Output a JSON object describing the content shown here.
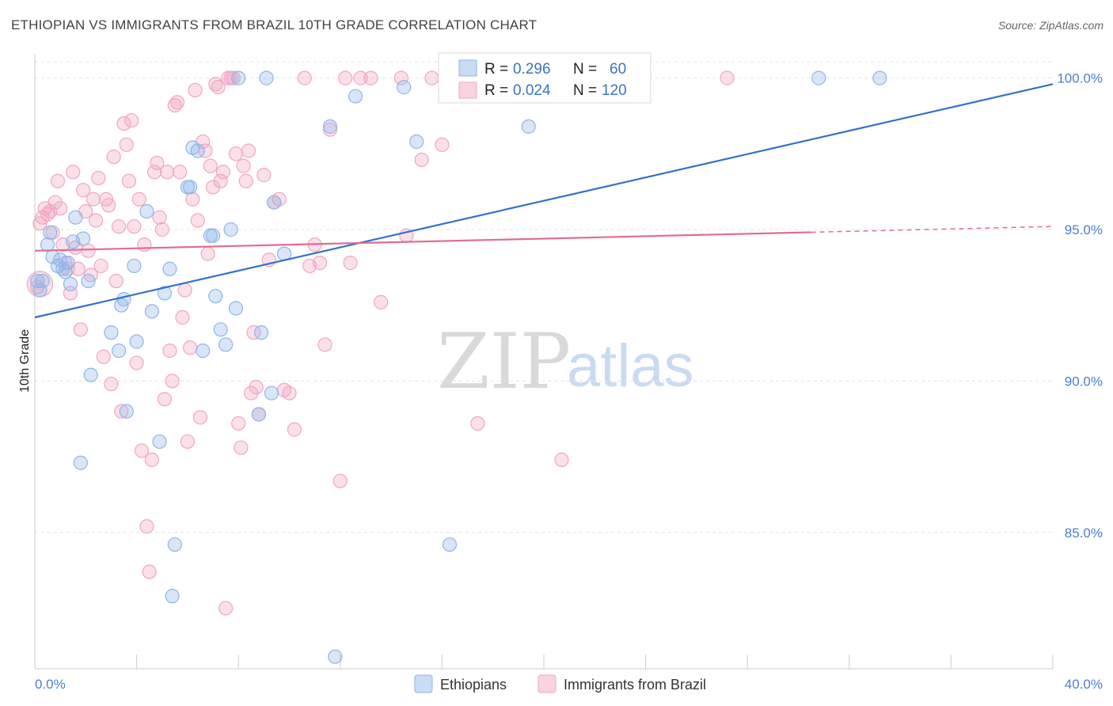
{
  "title": "ETHIOPIAN VS IMMIGRANTS FROM BRAZIL 10TH GRADE CORRELATION CHART",
  "source": "Source: ZipAtlas.com",
  "watermark": {
    "zip": "ZIP",
    "atlas": "atlas"
  },
  "stats_box": {
    "rows": [
      {
        "r_label": "R =",
        "r_value": "0.296",
        "n_label": "N =",
        "n_value": "60"
      },
      {
        "r_label": "R =",
        "r_value": "0.024",
        "n_label": "N =",
        "n_value": "120"
      }
    ]
  },
  "chart_data": {
    "type": "scatter",
    "title": "ETHIOPIAN VS IMMIGRANTS FROM BRAZIL 10TH GRADE CORRELATION CHART",
    "xlabel": "",
    "ylabel": "10th Grade",
    "xlim": [
      0,
      40
    ],
    "ylim": [
      80.5,
      100.8
    ],
    "x_tick_labels": [
      {
        "value": 0,
        "label": "0.0%"
      },
      {
        "value": 40,
        "label": "40.0%"
      }
    ],
    "y_tick_labels": [
      {
        "value": 85,
        "label": "85.0%"
      },
      {
        "value": 90,
        "label": "90.0%"
      },
      {
        "value": 95,
        "label": "95.0%"
      },
      {
        "value": 100,
        "label": "100.0%"
      }
    ],
    "grid": true,
    "legend_position": "bottom",
    "colors": {
      "ethiopians": "#8fb6ea",
      "ethiopians_line": "#3372c9",
      "brazil": "#f2a6c0",
      "brazil_line": "#e46a94"
    },
    "series": [
      {
        "name": "Ethiopians",
        "trend": {
          "x": [
            0,
            40
          ],
          "y": [
            92.1,
            99.8
          ]
        },
        "points": [
          [
            0.1,
            93.3
          ],
          [
            0.2,
            93.0
          ],
          [
            0.3,
            93.3
          ],
          [
            0.5,
            94.5
          ],
          [
            0.6,
            94.9
          ],
          [
            0.7,
            94.1
          ],
          [
            0.9,
            93.8
          ],
          [
            1.0,
            94.0
          ],
          [
            1.1,
            93.7
          ],
          [
            1.2,
            93.6
          ],
          [
            1.3,
            93.9
          ],
          [
            1.4,
            93.2
          ],
          [
            1.5,
            94.6
          ],
          [
            1.6,
            95.4
          ],
          [
            1.8,
            87.3
          ],
          [
            1.9,
            94.7
          ],
          [
            2.1,
            93.3
          ],
          [
            2.2,
            90.2
          ],
          [
            3.0,
            91.6
          ],
          [
            3.3,
            91.0
          ],
          [
            3.4,
            92.5
          ],
          [
            3.5,
            92.7
          ],
          [
            3.6,
            89.0
          ],
          [
            3.9,
            93.8
          ],
          [
            4.0,
            91.3
          ],
          [
            4.4,
            95.6
          ],
          [
            4.6,
            92.3
          ],
          [
            4.9,
            88.0
          ],
          [
            5.1,
            92.9
          ],
          [
            5.3,
            93.7
          ],
          [
            5.4,
            82.9
          ],
          [
            5.5,
            84.6
          ],
          [
            6.0,
            96.4
          ],
          [
            6.1,
            96.4
          ],
          [
            6.2,
            97.7
          ],
          [
            6.4,
            97.6
          ],
          [
            6.6,
            91.0
          ],
          [
            6.9,
            94.8
          ],
          [
            7.0,
            94.8
          ],
          [
            7.1,
            92.8
          ],
          [
            7.3,
            91.7
          ],
          [
            7.5,
            91.2
          ],
          [
            7.7,
            95.0
          ],
          [
            7.9,
            92.4
          ],
          [
            8.8,
            88.9
          ],
          [
            8.9,
            91.6
          ],
          [
            8.0,
            100.0
          ],
          [
            9.1,
            100.0
          ],
          [
            9.3,
            89.6
          ],
          [
            9.4,
            95.9
          ],
          [
            9.8,
            94.2
          ],
          [
            11.6,
            98.4
          ],
          [
            11.8,
            80.9
          ],
          [
            12.6,
            99.4
          ],
          [
            14.5,
            99.7
          ],
          [
            15.0,
            97.9
          ],
          [
            16.3,
            84.6
          ],
          [
            19.4,
            98.4
          ],
          [
            30.8,
            100.0
          ],
          [
            33.2,
            100.0
          ]
        ]
      },
      {
        "name": "Immigrants from Brazil",
        "trend": {
          "x": [
            0,
            40
          ],
          "y": [
            94.3,
            95.1
          ],
          "solid_to_x": 30.5
        },
        "points": [
          [
            0.1,
            93.1
          ],
          [
            0.2,
            95.2
          ],
          [
            0.3,
            95.4
          ],
          [
            0.4,
            95.7
          ],
          [
            0.5,
            95.5
          ],
          [
            0.6,
            95.6
          ],
          [
            0.7,
            94.9
          ],
          [
            0.8,
            95.9
          ],
          [
            0.9,
            96.6
          ],
          [
            1.0,
            95.7
          ],
          [
            1.1,
            94.5
          ],
          [
            1.2,
            93.9
          ],
          [
            1.3,
            93.7
          ],
          [
            1.4,
            92.9
          ],
          [
            1.5,
            96.9
          ],
          [
            1.6,
            94.4
          ],
          [
            1.7,
            93.7
          ],
          [
            1.8,
            91.7
          ],
          [
            1.9,
            96.3
          ],
          [
            2.0,
            95.6
          ],
          [
            2.1,
            94.3
          ],
          [
            2.2,
            93.5
          ],
          [
            2.3,
            96.0
          ],
          [
            2.4,
            95.3
          ],
          [
            2.5,
            96.7
          ],
          [
            2.6,
            93.8
          ],
          [
            2.7,
            90.8
          ],
          [
            2.8,
            96.0
          ],
          [
            2.9,
            95.8
          ],
          [
            3.0,
            89.9
          ],
          [
            3.1,
            97.4
          ],
          [
            3.2,
            93.3
          ],
          [
            3.3,
            95.1
          ],
          [
            3.4,
            89.0
          ],
          [
            3.5,
            98.5
          ],
          [
            3.6,
            97.8
          ],
          [
            3.7,
            96.6
          ],
          [
            3.8,
            98.6
          ],
          [
            3.9,
            95.1
          ],
          [
            4.0,
            90.6
          ],
          [
            4.1,
            96.0
          ],
          [
            4.2,
            87.7
          ],
          [
            4.3,
            94.5
          ],
          [
            4.4,
            85.2
          ],
          [
            4.5,
            83.7
          ],
          [
            4.6,
            87.4
          ],
          [
            4.7,
            96.9
          ],
          [
            4.8,
            97.2
          ],
          [
            4.9,
            95.4
          ],
          [
            5.0,
            95.0
          ],
          [
            5.1,
            89.4
          ],
          [
            5.2,
            96.9
          ],
          [
            5.3,
            91.0
          ],
          [
            5.4,
            90.0
          ],
          [
            5.5,
            99.1
          ],
          [
            5.6,
            99.2
          ],
          [
            5.7,
            96.9
          ],
          [
            5.8,
            92.1
          ],
          [
            5.9,
            93.0
          ],
          [
            6.0,
            88.0
          ],
          [
            6.1,
            91.1
          ],
          [
            6.2,
            96.0
          ],
          [
            6.3,
            99.6
          ],
          [
            6.4,
            95.3
          ],
          [
            6.5,
            88.8
          ],
          [
            6.6,
            97.9
          ],
          [
            6.7,
            97.6
          ],
          [
            6.8,
            94.2
          ],
          [
            6.9,
            97.1
          ],
          [
            7.0,
            96.4
          ],
          [
            7.1,
            99.8
          ],
          [
            7.2,
            99.7
          ],
          [
            7.3,
            96.6
          ],
          [
            7.4,
            96.9
          ],
          [
            7.5,
            82.5
          ],
          [
            7.6,
            100.0
          ],
          [
            7.7,
            100.0
          ],
          [
            7.8,
            100.0
          ],
          [
            7.9,
            97.5
          ],
          [
            8.0,
            88.6
          ],
          [
            8.1,
            87.8
          ],
          [
            8.2,
            97.1
          ],
          [
            8.3,
            96.6
          ],
          [
            8.4,
            97.6
          ],
          [
            8.5,
            89.6
          ],
          [
            8.6,
            91.6
          ],
          [
            8.7,
            89.8
          ],
          [
            8.8,
            88.9
          ],
          [
            9.0,
            96.8
          ],
          [
            9.2,
            94.0
          ],
          [
            9.4,
            95.9
          ],
          [
            9.6,
            96.0
          ],
          [
            9.8,
            89.7
          ],
          [
            10.0,
            89.6
          ],
          [
            10.2,
            88.4
          ],
          [
            10.8,
            93.8
          ],
          [
            11.0,
            94.5
          ],
          [
            11.2,
            93.9
          ],
          [
            11.4,
            91.2
          ],
          [
            11.6,
            98.3
          ],
          [
            12.0,
            86.7
          ],
          [
            12.2,
            100.0
          ],
          [
            12.4,
            93.9
          ],
          [
            13.2,
            100.0
          ],
          [
            13.6,
            92.6
          ],
          [
            14.4,
            100.0
          ],
          [
            14.6,
            94.8
          ],
          [
            15.2,
            97.3
          ],
          [
            16.0,
            97.8
          ],
          [
            17.4,
            88.6
          ],
          [
            20.7,
            87.4
          ],
          [
            27.2,
            100.0
          ],
          [
            12.8,
            100.0
          ],
          [
            10.6,
            100.0
          ],
          [
            15.6,
            100.0
          ],
          [
            16.2,
            100.0
          ]
        ]
      }
    ]
  },
  "legend": {
    "items": [
      {
        "label": "Ethiopians"
      },
      {
        "label": "Immigrants from Brazil"
      }
    ]
  }
}
